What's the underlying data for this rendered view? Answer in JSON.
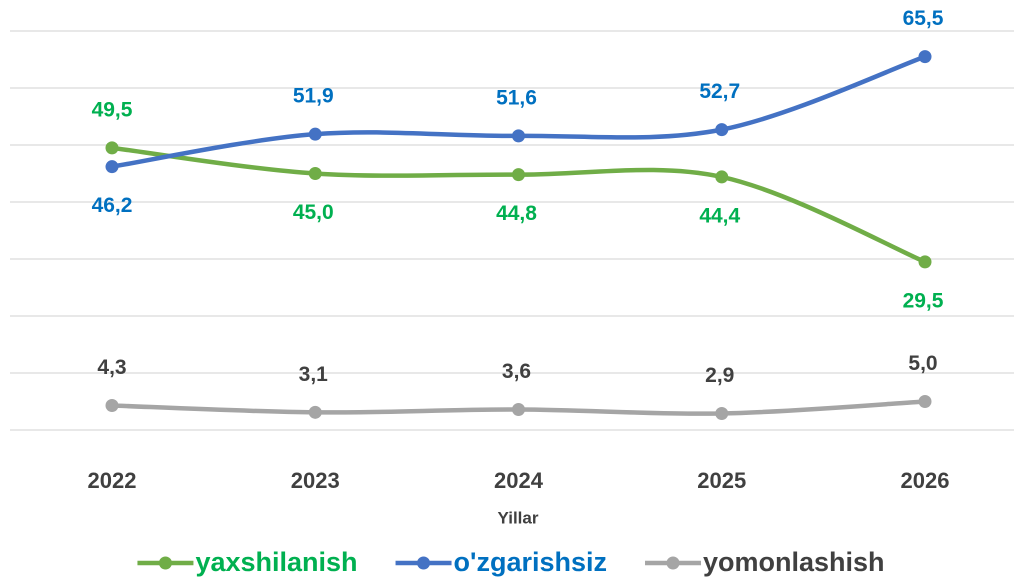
{
  "chart_data": {
    "type": "line",
    "x_label": "Yillar",
    "categories": [
      "2022",
      "2023",
      "2024",
      "2025",
      "2026"
    ],
    "series": [
      {
        "name": "yaxshilanish",
        "color": "#70ad47",
        "values": [
          49.5,
          45.0,
          44.8,
          44.4,
          29.5
        ],
        "value_labels": [
          "49,5",
          "45,0",
          "44,8",
          "44,4",
          "29,5"
        ]
      },
      {
        "name": "o'zgarishsiz",
        "color": "#4472c4",
        "values": [
          46.2,
          51.9,
          51.6,
          52.7,
          65.5
        ],
        "value_labels": [
          "46,2",
          "51,9",
          "51,6",
          "52,7",
          "65,5"
        ]
      },
      {
        "name": "yomonlashish",
        "color": "#a5a5a5",
        "values": [
          4.3,
          3.1,
          3.6,
          2.9,
          5.0
        ],
        "value_labels": [
          "4,3",
          "3,1",
          "3,6",
          "2,9",
          "5,0"
        ]
      }
    ],
    "ylim": [
      0,
      70
    ],
    "yticks": [
      0,
      10,
      20,
      30,
      40,
      50,
      60,
      70
    ],
    "grid": true,
    "smooth": true,
    "legend": "bottom"
  }
}
